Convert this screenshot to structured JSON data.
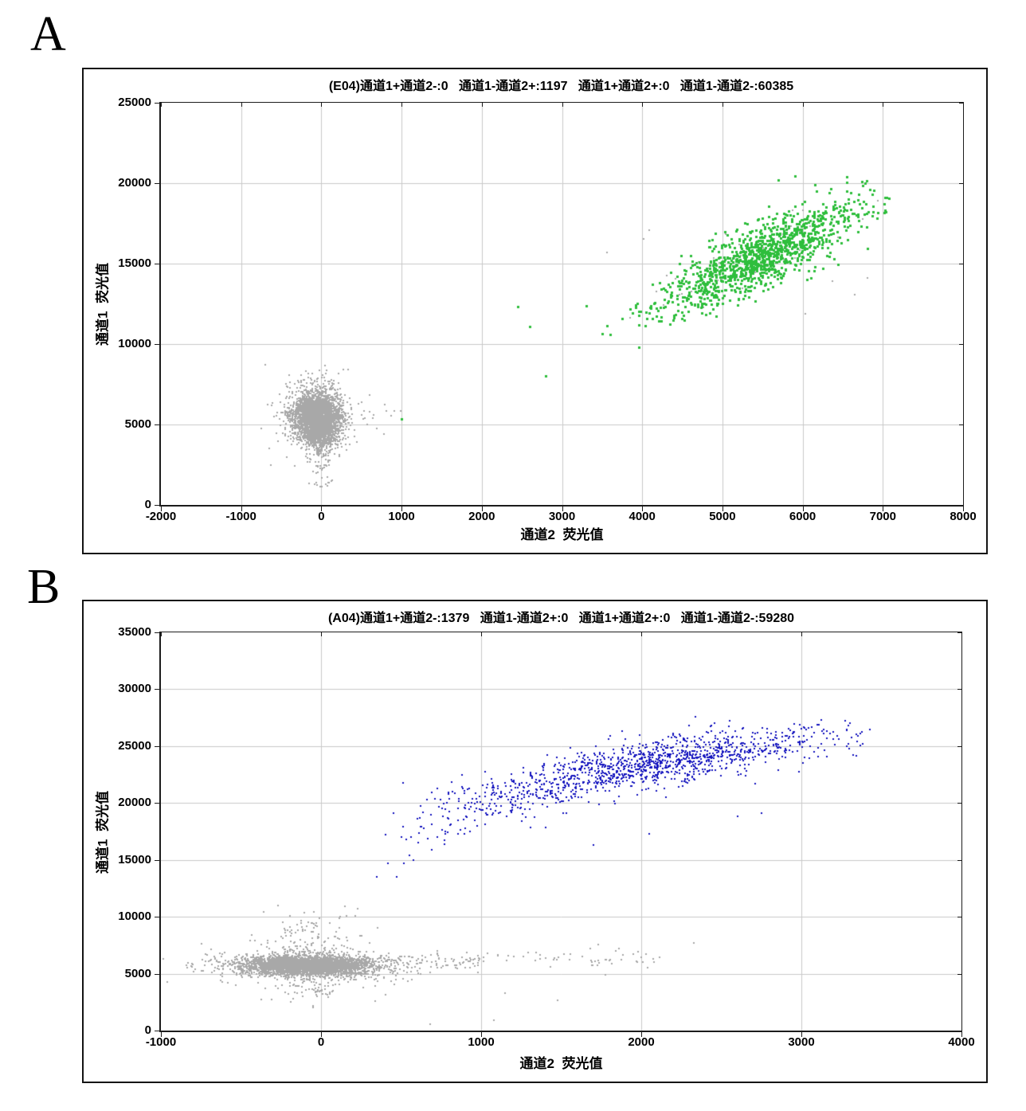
{
  "figure": {
    "panel_letters": [
      "A",
      "B"
    ],
    "background": "#ffffff"
  },
  "colors": {
    "grid": "#c9c9c9",
    "axis": "#1c1c1c",
    "negative_gray": "#a8a8a8",
    "positive_green": "#2ebe3c",
    "positive_blue": "#1212bE"
  },
  "chart_data": [
    {
      "type": "scatter",
      "panel": "A",
      "well": "E04",
      "title": "(E04)通道1+通道2-:0   通道1-通道2+:1197   通道1+通道2+:0   通道1-通道2-:60385",
      "xlabel": "通道2  荧光值",
      "ylabel": "通道1  荧光值",
      "xlim": [
        -2000,
        8000
      ],
      "xstep": 1000,
      "ylim": [
        0,
        25000
      ],
      "ystep": 5000,
      "grid": true,
      "seed": 20240401,
      "quadrant_counts": {
        "通道1+通道2-": 0,
        "通道1-通道2+": 1197,
        "通道1+通道2+": 0,
        "通道1-通道2-": 60385
      },
      "populations": [
        {
          "name": "double-negative droplets",
          "color_key": "negative_gray",
          "reported_count": 60385,
          "center": [
            -60,
            5400
          ],
          "x_range": [
            -450,
            350
          ],
          "y_range": [
            1100,
            9000
          ]
        },
        {
          "name": "channel2-positive droplets",
          "color_key": "positive_green",
          "reported_count": 1197,
          "center": [
            5450,
            15400
          ],
          "x_range": [
            2450,
            7050
          ],
          "y_range": [
            7900,
            20500
          ],
          "trend": "positive-diagonal"
        }
      ],
      "render_clusters": [
        {
          "kind": "gauss",
          "n": 2600,
          "cx": -60,
          "cy": 5600,
          "sdx": 150,
          "sdy": 640,
          "color": "negative_gray",
          "size": 2
        },
        {
          "kind": "gauss",
          "n": 750,
          "cx": -30,
          "cy": 4400,
          "sdx": 115,
          "sdy": 520,
          "color": "negative_gray",
          "size": 2
        },
        {
          "kind": "gauss",
          "n": 170,
          "cx": -60,
          "cy": 5400,
          "sdx": 280,
          "sdy": 1250,
          "color": "negative_gray",
          "size": 2
        },
        {
          "kind": "gauss",
          "n": 70,
          "cx": -70,
          "cy": 7500,
          "sdx": 130,
          "sdy": 480,
          "color": "negative_gray",
          "size": 2
        },
        {
          "kind": "vstrip",
          "n": 55,
          "cx": 5,
          "sdx": 70,
          "y0": 1150,
          "y1": 3600,
          "color": "negative_gray",
          "size": 2
        },
        {
          "kind": "hstrip",
          "n": 18,
          "x0": 180,
          "x1": 1050,
          "cy": 5700,
          "sdy": 650,
          "color": "negative_gray",
          "size": 2
        },
        {
          "kind": "gauss",
          "n": 55,
          "cx": 5480,
          "cy": 15450,
          "sdx": 600,
          "sdy": 1650,
          "rho": 0.82,
          "color": "negative_gray",
          "size": 2
        },
        {
          "kind": "uniform",
          "n": 14,
          "x0": 3000,
          "x1": 6900,
          "y0": 11500,
          "y1": 19000,
          "color": "negative_gray",
          "size": 2
        },
        {
          "kind": "gauss",
          "n": 1183,
          "cx": 5480,
          "cy": 15450,
          "sdx": 600,
          "sdy": 1650,
          "rho": 0.82,
          "color": "positive_green",
          "size": 3,
          "xclip": [
            2300,
            7100
          ],
          "yclip": [
            7600,
            20550
          ]
        },
        {
          "kind": "points",
          "list": [
            [
              7050,
              19100
            ],
            [
              6600,
              19400
            ],
            [
              2450,
              12350
            ],
            [
              2600,
              11100
            ],
            [
              2800,
              8000
            ],
            [
              1000,
              5350
            ],
            [
              3300,
              12400
            ],
            [
              3600,
              10600
            ],
            [
              6550,
              20400
            ],
            [
              5900,
              20450
            ],
            [
              5700,
              20200
            ],
            [
              6150,
              19900
            ],
            [
              4100,
              12300
            ],
            [
              3750,
              11600
            ]
          ],
          "color": "positive_green",
          "size": 3
        }
      ]
    },
    {
      "type": "scatter",
      "panel": "B",
      "well": "A04",
      "title": "(A04)通道1+通道2-:1379   通道1-通道2+:0   通道1+通道2+:0   通道1-通道2-:59280",
      "xlabel": "通道2  荧光值",
      "ylabel": "通道1  荧光值",
      "xlim": [
        -1000,
        4000
      ],
      "xstep": 1000,
      "ylim": [
        0,
        35000
      ],
      "ystep": 5000,
      "grid": true,
      "seed": 987654,
      "quadrant_counts": {
        "通道1+通道2-": 1379,
        "通道1-通道2+": 0,
        "通道1+通道2+": 0,
        "通道1-通道2-": 59280
      },
      "populations": [
        {
          "name": "double-negative droplets",
          "color_key": "negative_gray",
          "reported_count": 59280,
          "center": [
            -80,
            5750
          ],
          "x_range": [
            -450,
            2150
          ],
          "y_range": [
            550,
            11400
          ]
        },
        {
          "name": "channel1-positive droplets",
          "color_key": "positive_blue",
          "reported_count": 1379,
          "center": [
            1950,
            22500
          ],
          "x_range": [
            350,
            3450
          ],
          "y_range": [
            13500,
            27600
          ],
          "trend": "rising-log-curve"
        }
      ],
      "render_clusters": [
        {
          "kind": "gauss",
          "n": 2900,
          "cx": -90,
          "cy": 5750,
          "sdx": 200,
          "sdy": 430,
          "color": "negative_gray",
          "size": 2
        },
        {
          "kind": "gauss",
          "n": 800,
          "cx": -50,
          "cy": 5800,
          "sdx": 120,
          "sdy": 300,
          "color": "negative_gray",
          "size": 2
        },
        {
          "kind": "gauss",
          "n": 460,
          "cx": -80,
          "cy": 5600,
          "sdx": 330,
          "sdy": 850,
          "color": "negative_gray",
          "size": 2
        },
        {
          "kind": "gauss",
          "n": 90,
          "cx": -90,
          "cy": 8300,
          "sdx": 180,
          "sdy": 1200,
          "color": "negative_gray",
          "size": 2,
          "yclip": [
            6800,
            11400
          ]
        },
        {
          "kind": "gauss",
          "n": 60,
          "cx": -30,
          "cy": 3900,
          "sdx": 170,
          "sdy": 850,
          "color": "negative_gray",
          "size": 2,
          "yclip": [
            1800,
            4800
          ]
        },
        {
          "kind": "hstrip",
          "n": 110,
          "x0": 230,
          "x1": 1000,
          "cy": 6050,
          "sdy": 420,
          "color": "negative_gray",
          "size": 2
        },
        {
          "kind": "hstrip",
          "n": 55,
          "x0": 1000,
          "x1": 2150,
          "cy": 6300,
          "sdy": 520,
          "color": "negative_gray",
          "size": 2
        },
        {
          "kind": "points",
          "list": [
            [
              1680,
              7200
            ],
            [
              1080,
              900
            ],
            [
              680,
              550
            ],
            [
              1480,
              2650
            ],
            [
              2330,
              7700
            ],
            [
              340,
              2600
            ],
            [
              -360,
              10400
            ],
            [
              -270,
              11000
            ],
            [
              150,
              10900
            ],
            [
              1150,
              3300
            ]
          ],
          "color": "negative_gray",
          "size": 2
        },
        {
          "kind": "logcurve",
          "n": 1366,
          "x_mean": 1950,
          "x_sd": 620,
          "x_min": 380,
          "x_max": 3450,
          "y_base": 9000,
          "y_scale": 4800,
          "x_ref": 100,
          "noise": 1000,
          "noise_low_x": 900,
          "noise_low": 1500,
          "y_max": 27400,
          "color": "positive_blue",
          "size": 2
        },
        {
          "kind": "points",
          "list": [
            [
              2340,
              27600
            ],
            [
              2300,
              26800
            ],
            [
              3370,
              26100
            ],
            [
              3200,
              25600
            ],
            [
              2550,
              27200
            ],
            [
              510,
              21800
            ],
            [
              530,
              16800
            ],
            [
              350,
              13500
            ],
            [
              1700,
              16300
            ],
            [
              2600,
              18800
            ],
            [
              2750,
              19100
            ],
            [
              420,
              14700
            ],
            [
              2050,
              17300
            ]
          ],
          "color": "positive_blue",
          "size": 2
        }
      ]
    }
  ]
}
